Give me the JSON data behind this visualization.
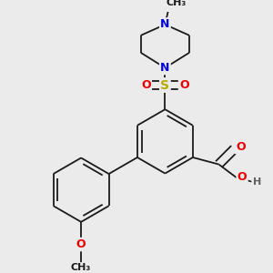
{
  "background_color": "#ebebeb",
  "fig_width": 3.0,
  "fig_height": 3.0,
  "dpi": 100,
  "atom_colors": {
    "C": "#1a1a1a",
    "N": "#0000ee",
    "O": "#ee0000",
    "S": "#bbaa00",
    "H": "#606060"
  },
  "bond_color": "#1a1a1a",
  "bond_lw": 1.3,
  "font_size": 8.5,
  "dbo": 0.012
}
